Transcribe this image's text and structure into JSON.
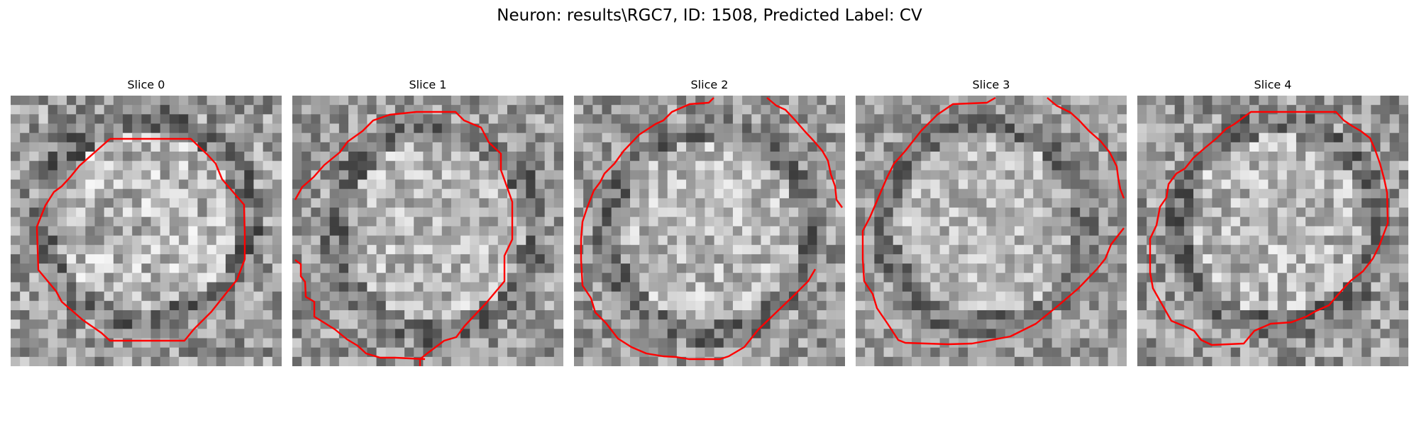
{
  "figure": {
    "title": "Neuron: results\\RGC7, ID: 1508, Predicted Label: CV"
  },
  "colors": {
    "contour": "#ff0000",
    "background": "#ffffff"
  },
  "panels": [
    {
      "title": "Slice 0"
    },
    {
      "title": "Slice 1"
    },
    {
      "title": "Slice 2"
    },
    {
      "title": "Slice 3"
    },
    {
      "title": "Slice 4"
    }
  ]
}
